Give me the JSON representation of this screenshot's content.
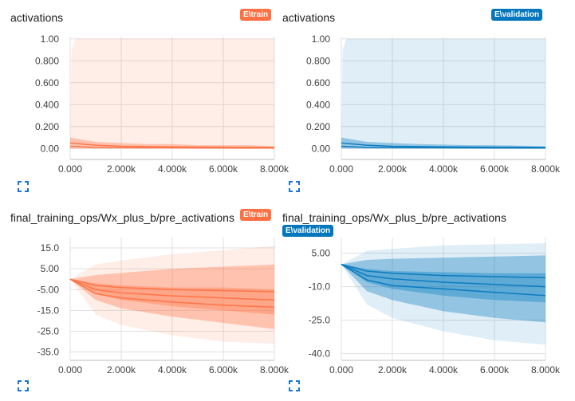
{
  "colors": {
    "train": "#ff7043",
    "validation": "#0277bd",
    "grid": "#e0e0e0",
    "tick_text": "#424242"
  },
  "icons": {
    "expand": "fullscreen-expand-icon"
  },
  "chart_data": [
    {
      "type": "area",
      "title": "activations",
      "run": "E\\train",
      "color": "#ff7043",
      "xlim": [
        0,
        8000
      ],
      "ylim": [
        -0.1,
        1.02
      ],
      "xticks": [
        0,
        2000,
        4000,
        6000,
        8000
      ],
      "xtick_labels": [
        "0.000",
        "2.000k",
        "4.000k",
        "6.000k",
        "8.000k"
      ],
      "yticks": [
        0,
        0.2,
        0.4,
        0.6,
        0.8,
        1.0
      ],
      "ytick_labels": [
        "0.00",
        "0.200",
        "0.400",
        "0.600",
        "0.800",
        "1.00"
      ],
      "grid": true,
      "series": [
        {
          "role": "envelope",
          "x": [
            0,
            50,
            200,
            8000
          ],
          "upper": [
            0.0,
            0.9,
            1.0,
            1.0
          ],
          "lower": [
            0.0,
            0.0,
            0.0,
            0.0
          ]
        },
        {
          "role": "band",
          "x": [
            0,
            500,
            1000,
            2000,
            3000,
            4000,
            5000,
            6000,
            7000,
            8000
          ],
          "upper": [
            0.1,
            0.08,
            0.06,
            0.05,
            0.04,
            0.04,
            0.03,
            0.03,
            0.03,
            0.02
          ],
          "lower": [
            0.0,
            0.0,
            0.0,
            0.0,
            0.0,
            0.0,
            0.0,
            0.0,
            0.0,
            0.0
          ]
        },
        {
          "role": "line",
          "x": [
            0,
            1000,
            2000,
            4000,
            6000,
            8000
          ],
          "y": [
            0.05,
            0.03,
            0.02,
            0.015,
            0.012,
            0.01
          ]
        },
        {
          "role": "line",
          "x": [
            0,
            1000,
            2000,
            4000,
            6000,
            8000
          ],
          "y": [
            0.02,
            0.01,
            0.008,
            0.006,
            0.005,
            0.004
          ]
        }
      ]
    },
    {
      "type": "area",
      "title": "activations",
      "run": "E\\validation",
      "color": "#0277bd",
      "xlim": [
        0,
        8000
      ],
      "ylim": [
        -0.1,
        1.02
      ],
      "xticks": [
        0,
        2000,
        4000,
        6000,
        8000
      ],
      "xtick_labels": [
        "0.000",
        "2.000k",
        "4.000k",
        "6.000k",
        "8.000k"
      ],
      "yticks": [
        0,
        0.2,
        0.4,
        0.6,
        0.8,
        1.0
      ],
      "ytick_labels": [
        "0.00",
        "0.200",
        "0.400",
        "0.600",
        "0.800",
        "1.00"
      ],
      "grid": true,
      "series": [
        {
          "role": "envelope",
          "x": [
            0,
            50,
            200,
            8000
          ],
          "upper": [
            0.0,
            0.9,
            1.0,
            1.0
          ],
          "lower": [
            0.0,
            0.0,
            0.0,
            0.0
          ]
        },
        {
          "role": "band",
          "x": [
            0,
            500,
            1000,
            2000,
            3000,
            4000,
            5000,
            6000,
            7000,
            8000
          ],
          "upper": [
            0.1,
            0.08,
            0.06,
            0.05,
            0.04,
            0.035,
            0.03,
            0.03,
            0.025,
            0.02
          ],
          "lower": [
            0.0,
            0.0,
            0.0,
            0.0,
            0.0,
            0.0,
            0.0,
            0.0,
            0.0,
            0.0
          ]
        },
        {
          "role": "line",
          "x": [
            0,
            1000,
            2000,
            4000,
            6000,
            8000
          ],
          "y": [
            0.05,
            0.03,
            0.02,
            0.015,
            0.012,
            0.01
          ]
        },
        {
          "role": "line",
          "x": [
            0,
            1000,
            2000,
            4000,
            6000,
            8000
          ],
          "y": [
            0.02,
            0.01,
            0.008,
            0.006,
            0.005,
            0.004
          ]
        }
      ]
    },
    {
      "type": "area",
      "title": "final_training_ops/Wx_plus_b/pre_activations",
      "run": "E\\train",
      "color": "#ff7043",
      "xlim": [
        0,
        8000
      ],
      "ylim": [
        -39,
        20
      ],
      "xticks": [
        0,
        2000,
        4000,
        6000,
        8000
      ],
      "xtick_labels": [
        "0.000",
        "2.000k",
        "4.000k",
        "6.000k",
        "8.000k"
      ],
      "yticks": [
        -35,
        -25,
        -15,
        -5,
        5,
        15
      ],
      "ytick_labels": [
        "-35.0",
        "-25.0",
        "-15.0",
        "-5.00",
        "5.00",
        "15.0"
      ],
      "grid": true,
      "series": [
        {
          "role": "envelope",
          "x": [
            0,
            1000,
            2000,
            4000,
            6000,
            8000
          ],
          "upper": [
            0,
            7,
            9,
            12,
            14,
            16
          ],
          "lower": [
            0,
            -17,
            -22,
            -27,
            -30,
            -31
          ]
        },
        {
          "role": "band",
          "x": [
            0,
            1000,
            2000,
            4000,
            6000,
            8000
          ],
          "upper": [
            0,
            2,
            3,
            5,
            6,
            7
          ],
          "lower": [
            0,
            -10,
            -14,
            -18,
            -21,
            -24
          ]
        },
        {
          "role": "band",
          "x": [
            0,
            1000,
            2000,
            4000,
            6000,
            8000
          ],
          "upper": [
            0,
            -2,
            -3,
            -4,
            -4,
            -5
          ],
          "lower": [
            0,
            -7,
            -10,
            -13,
            -15,
            -17
          ]
        },
        {
          "role": "line",
          "x": [
            0,
            1000,
            2000,
            4000,
            6000,
            8000
          ],
          "y": [
            0,
            -5,
            -6.5,
            -8,
            -9,
            -10
          ]
        },
        {
          "role": "line",
          "x": [
            0,
            1000,
            2000,
            4000,
            6000,
            8000
          ],
          "y": [
            0,
            -3,
            -4,
            -5,
            -5.5,
            -6
          ]
        },
        {
          "role": "line",
          "x": [
            0,
            1000,
            2000,
            4000,
            6000,
            8000
          ],
          "y": [
            0,
            -7,
            -9,
            -11,
            -12.5,
            -13.5
          ]
        }
      ]
    },
    {
      "type": "area",
      "title": "final_training_ops/Wx_plus_b/pre_activations",
      "run": "E\\validation",
      "color": "#0277bd",
      "xlim": [
        0,
        8000
      ],
      "ylim": [
        -43,
        12
      ],
      "xticks": [
        0,
        2000,
        4000,
        6000,
        8000
      ],
      "xtick_labels": [
        "0.000",
        "2.000k",
        "4.000k",
        "6.000k",
        "8.000k"
      ],
      "yticks": [
        -40,
        -25,
        -10,
        5
      ],
      "ytick_labels": [
        "-40.0",
        "-25.0",
        "-10.0",
        "5.00"
      ],
      "grid": true,
      "series": [
        {
          "role": "envelope",
          "x": [
            0,
            1000,
            2000,
            4000,
            6000,
            8000
          ],
          "upper": [
            0,
            6,
            7,
            8.5,
            9,
            9.5
          ],
          "lower": [
            0,
            -18,
            -24,
            -30,
            -34,
            -36
          ]
        },
        {
          "role": "band",
          "x": [
            0,
            1000,
            2000,
            4000,
            6000,
            8000
          ],
          "upper": [
            0,
            2,
            2.5,
            3,
            3.5,
            4
          ],
          "lower": [
            0,
            -12,
            -16,
            -21,
            -24,
            -26
          ]
        },
        {
          "role": "band",
          "x": [
            0,
            1000,
            2000,
            4000,
            6000,
            8000
          ],
          "upper": [
            0,
            -2,
            -3,
            -3.5,
            -4,
            -4
          ],
          "lower": [
            0,
            -8,
            -11,
            -14,
            -16,
            -17
          ]
        },
        {
          "role": "line",
          "x": [
            0,
            1000,
            2000,
            4000,
            6000,
            8000
          ],
          "y": [
            0,
            -5,
            -6.5,
            -8,
            -9,
            -10
          ]
        },
        {
          "role": "line",
          "x": [
            0,
            1000,
            2000,
            4000,
            6000,
            8000
          ],
          "y": [
            0,
            -3,
            -4,
            -5,
            -5.5,
            -6
          ]
        },
        {
          "role": "line",
          "x": [
            0,
            1000,
            2000,
            4000,
            6000,
            8000
          ],
          "y": [
            0,
            -7,
            -9.5,
            -11,
            -12.5,
            -14
          ]
        }
      ]
    }
  ]
}
